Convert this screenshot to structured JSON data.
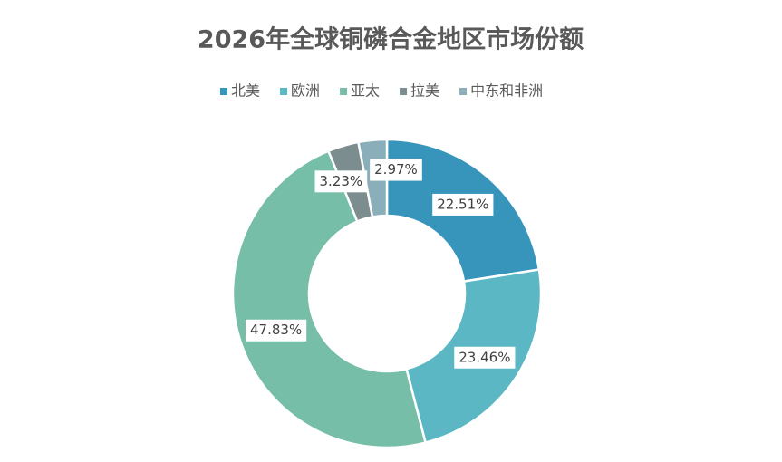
{
  "chart_data": {
    "type": "donut",
    "title": "2026年全球铜磷合金地区市场份额",
    "categories": [
      "北美",
      "欧洲",
      "亚太",
      "拉美",
      "中东和非洲"
    ],
    "values": [
      22.51,
      23.46,
      47.83,
      3.23,
      2.97
    ],
    "value_labels": [
      "22.51%",
      "23.46%",
      "47.83%",
      "3.23%",
      "2.97%"
    ],
    "colors": [
      "#3795bc",
      "#5bb7c3",
      "#76bea7",
      "#7b8d8f",
      "#8aafbb"
    ],
    "legend": "top"
  }
}
